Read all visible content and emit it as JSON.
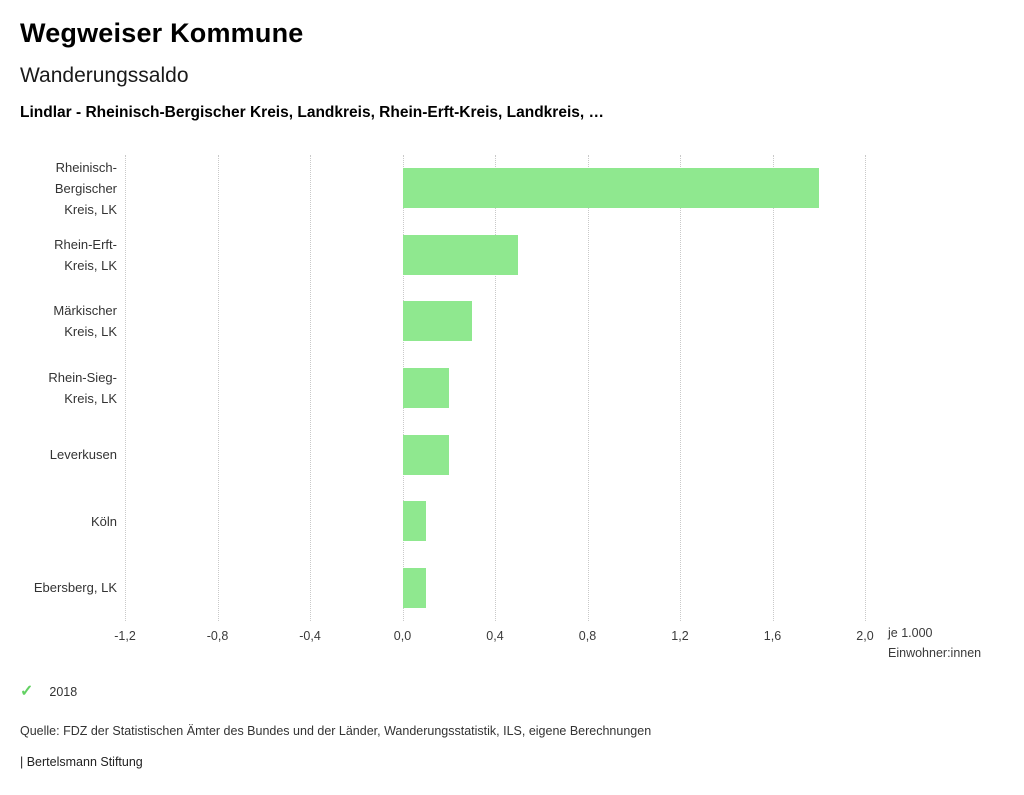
{
  "header": {
    "title": "Wegweiser Kommune",
    "subtitle": "Wanderungssaldo",
    "selection": "Lindlar - Rheinisch-Bergischer Kreis, Landkreis, Rhein-Erft-Kreis, Landkreis, …"
  },
  "chart_data": {
    "type": "bar",
    "orientation": "horizontal",
    "title": "Wanderungssaldo",
    "categories": [
      "Rheinisch-Bergischer Kreis, LK",
      "Rhein-Erft-Kreis, LK",
      "Märkischer Kreis, LK",
      "Rhein-Sieg-Kreis, LK",
      "Leverkusen",
      "Köln",
      "Ebersberg, LK"
    ],
    "category_lines": [
      [
        "Rheinisch-",
        "Bergischer",
        "Kreis, LK"
      ],
      [
        "Rhein-Erft-",
        "Kreis, LK"
      ],
      [
        "Märkischer",
        "Kreis, LK"
      ],
      [
        "Rhein-Sieg-",
        "Kreis, LK"
      ],
      [
        "Leverkusen"
      ],
      [
        "Köln"
      ],
      [
        "Ebersberg, LK"
      ]
    ],
    "series": [
      {
        "name": "2018",
        "values": [
          1.8,
          0.5,
          0.3,
          0.2,
          0.2,
          0.1,
          0.1
        ]
      }
    ],
    "xlim": [
      -1.2,
      2.0
    ],
    "xticks": [
      -1.2,
      -0.8,
      -0.4,
      0.0,
      0.4,
      0.8,
      1.2,
      1.6,
      2.0
    ],
    "xtick_labels": [
      "-1,2",
      "-0,8",
      "-0,4",
      "0,0",
      "0,4",
      "0,8",
      "1,2",
      "1,6",
      "2,0"
    ],
    "xlabel_line1": "je 1.000",
    "xlabel_line2": "Einwohner:innen",
    "bar_color": "#8fe88f",
    "grid": true,
    "legend_position": "bottom-left"
  },
  "legend": {
    "check_icon": "✓",
    "check_color": "#63d163",
    "year": "2018"
  },
  "footer": {
    "source": "Quelle: FDZ der Statistischen Ämter des Bundes und der Länder, Wanderungsstatistik, ILS, eigene Berechnungen",
    "branding": "| Bertelsmann Stiftung"
  }
}
